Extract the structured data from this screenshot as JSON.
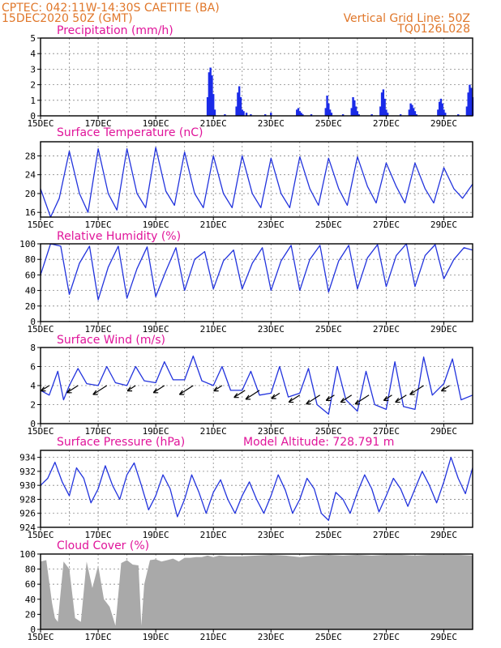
{
  "header": {
    "line1": "CPTEC:   042:11W-14:30S   CAETITE (BA)",
    "line2": "15DEC2020 50Z (GMT)",
    "right1": "Vertical Grid Line: 50Z",
    "right2": "TQ0126L028"
  },
  "colors": {
    "header": "#e0772a",
    "title": "#e0149a",
    "line": "#2233dd",
    "bar": "#1a2be8",
    "cloud": "#a9a9a9",
    "grid": "#888888"
  },
  "chart_data": [
    {
      "type": "bar",
      "title": "Precipitation (mm/h)",
      "ylim": [
        0,
        5
      ],
      "yticks": [
        0,
        1,
        2,
        3,
        4,
        5
      ],
      "xticks": [
        "15DEC",
        "17DEC",
        "19DEC",
        "21DEC",
        "23DEC",
        "25DEC",
        "27DEC",
        "29DEC"
      ],
      "xlim": [
        0,
        15
      ],
      "grid": "dotted",
      "series": [
        {
          "x": [
            5.8,
            5.85,
            5.9,
            5.95,
            6.0,
            6.05,
            6.4,
            6.8,
            6.85,
            6.9,
            6.95,
            7.0,
            7.05,
            7.15,
            7.3,
            7.8,
            8.0,
            8.9,
            8.95,
            9.0,
            9.05,
            9.1,
            9.4,
            9.9,
            9.95,
            10.0,
            10.05,
            10.1,
            10.5,
            10.8,
            10.85,
            10.9,
            10.95,
            11.0,
            11.05,
            11.5,
            11.8,
            11.85,
            11.9,
            11.95,
            12.0,
            12.05,
            12.5,
            12.8,
            12.85,
            12.9,
            12.95,
            13.0,
            13.05,
            13.8,
            13.85,
            13.9,
            13.95,
            14.0,
            14.05,
            14.5,
            14.8,
            14.85,
            14.9,
            14.95,
            15.0
          ],
          "values": [
            1.2,
            2.8,
            3.1,
            2.6,
            1.4,
            0.4,
            0.1,
            0.6,
            1.5,
            1.9,
            1.2,
            0.4,
            0.3,
            0.2,
            0.1,
            0.1,
            0.2,
            0.4,
            0.5,
            0.3,
            0.2,
            0.1,
            0.1,
            0.5,
            1.3,
            0.8,
            0.4,
            0.2,
            0.1,
            0.5,
            1.2,
            1.0,
            0.6,
            0.3,
            0.1,
            0.1,
            0.6,
            1.5,
            1.7,
            1.1,
            0.4,
            0.2,
            0.1,
            0.4,
            0.8,
            0.7,
            0.5,
            0.3,
            0.1,
            0.4,
            0.9,
            1.1,
            0.8,
            0.4,
            0.2,
            0.1,
            0.6,
            1.5,
            2.0,
            1.8,
            1.2
          ]
        }
      ]
    },
    {
      "type": "line",
      "title": "Surface Temperature (nC)",
      "ylim": [
        15,
        31
      ],
      "yticks": [
        16,
        20,
        24,
        28
      ],
      "xticks": [
        "15DEC",
        "17DEC",
        "19DEC",
        "21DEC",
        "23DEC",
        "25DEC",
        "27DEC",
        "29DEC"
      ],
      "xlim": [
        0,
        15
      ],
      "grid": "dotted",
      "series": [
        {
          "x": [
            0,
            0.35,
            0.65,
            1.0,
            1.35,
            1.65,
            2.0,
            2.35,
            2.65,
            3.0,
            3.35,
            3.65,
            4.0,
            4.35,
            4.65,
            5.0,
            5.35,
            5.65,
            6.0,
            6.35,
            6.65,
            7.0,
            7.35,
            7.65,
            8.0,
            8.35,
            8.65,
            9.0,
            9.35,
            9.65,
            10.0,
            10.35,
            10.65,
            11.0,
            11.35,
            11.65,
            12.0,
            12.35,
            12.65,
            13.0,
            13.35,
            13.65,
            14.0,
            14.35,
            14.65,
            15.0
          ],
          "values": [
            21.0,
            15.0,
            19.0,
            29.0,
            20.0,
            16.0,
            29.5,
            20.0,
            16.5,
            29.5,
            20.0,
            17.0,
            29.8,
            20.5,
            17.5,
            28.8,
            20.0,
            17.0,
            28.0,
            20.0,
            17.0,
            28.0,
            20.0,
            17.0,
            27.5,
            20.0,
            17.0,
            27.8,
            21.0,
            17.5,
            27.5,
            21.0,
            17.5,
            27.8,
            21.5,
            18.0,
            26.5,
            21.5,
            18.0,
            26.5,
            21.0,
            18.0,
            25.5,
            21.0,
            19.0,
            22.0
          ]
        }
      ]
    },
    {
      "type": "line",
      "title": "Relative Humidity (%)",
      "ylim": [
        0,
        100
      ],
      "yticks": [
        0,
        20,
        40,
        60,
        80,
        100
      ],
      "xticks": [
        "15DEC",
        "17DEC",
        "19DEC",
        "21DEC",
        "23DEC",
        "25DEC",
        "27DEC",
        "29DEC"
      ],
      "xlim": [
        0,
        15
      ],
      "grid": "dotted",
      "series": [
        {
          "x": [
            0,
            0.35,
            0.7,
            1.0,
            1.35,
            1.7,
            2.0,
            2.35,
            2.7,
            3.0,
            3.35,
            3.7,
            4.0,
            4.35,
            4.7,
            5.0,
            5.35,
            5.7,
            6.0,
            6.35,
            6.7,
            7.0,
            7.35,
            7.7,
            8.0,
            8.35,
            8.7,
            9.0,
            9.35,
            9.7,
            10.0,
            10.35,
            10.7,
            11.0,
            11.35,
            11.7,
            12.0,
            12.35,
            12.7,
            13.0,
            13.35,
            13.7,
            14.0,
            14.35,
            14.7,
            15.0
          ],
          "values": [
            60,
            100,
            97,
            35,
            75,
            97,
            28,
            70,
            97,
            30,
            68,
            96,
            32,
            65,
            95,
            40,
            80,
            90,
            42,
            78,
            92,
            42,
            75,
            95,
            40,
            78,
            98,
            40,
            80,
            98,
            38,
            78,
            98,
            42,
            82,
            99,
            45,
            85,
            100,
            45,
            85,
            99,
            55,
            80,
            95,
            92
          ]
        }
      ]
    },
    {
      "type": "line",
      "title": "Surface Wind (m/s)",
      "ylim": [
        0,
        8
      ],
      "yticks": [
        0,
        2,
        4,
        6,
        8
      ],
      "xticks": [
        "15DEC",
        "17DEC",
        "19DEC",
        "21DEC",
        "23DEC",
        "25DEC",
        "27DEC",
        "29DEC"
      ],
      "xlim": [
        0,
        15
      ],
      "grid": "dotted",
      "series": [
        {
          "x": [
            0,
            0.3,
            0.6,
            0.8,
            1.0,
            1.3,
            1.6,
            2.0,
            2.3,
            2.6,
            3.0,
            3.3,
            3.6,
            4.0,
            4.3,
            4.6,
            5.0,
            5.3,
            5.6,
            6.0,
            6.3,
            6.6,
            7.0,
            7.3,
            7.6,
            8.0,
            8.3,
            8.6,
            9.0,
            9.3,
            9.6,
            10.0,
            10.3,
            10.6,
            11.0,
            11.3,
            11.6,
            12.0,
            12.3,
            12.6,
            13.0,
            13.3,
            13.6,
            14.0,
            14.3,
            14.6,
            15.0
          ],
          "values": [
            3.5,
            3.0,
            5.5,
            2.5,
            4.0,
            5.8,
            4.2,
            4.0,
            6.0,
            4.3,
            4.0,
            6.0,
            4.5,
            4.3,
            6.5,
            4.6,
            4.6,
            7.1,
            4.5,
            4.0,
            6.0,
            3.5,
            3.5,
            5.5,
            3.0,
            3.2,
            6.0,
            2.8,
            3.2,
            5.8,
            2.0,
            1.0,
            6.0,
            2.5,
            1.3,
            5.5,
            2.0,
            1.5,
            6.5,
            1.8,
            1.5,
            7.0,
            3.0,
            4.2,
            6.8,
            2.5,
            3.0
          ]
        }
      ],
      "barbs": [
        {
          "x": 0.3,
          "speed": 4.0
        },
        {
          "x": 1.3,
          "speed": 4.0
        },
        {
          "x": 2.3,
          "speed": 4.0
        },
        {
          "x": 3.3,
          "speed": 4.0
        },
        {
          "x": 4.3,
          "speed": 4.0
        },
        {
          "x": 5.3,
          "speed": 4.0
        },
        {
          "x": 6.3,
          "speed": 4.0
        },
        {
          "x": 7.1,
          "speed": 3.5
        },
        {
          "x": 7.6,
          "speed": 3.5
        },
        {
          "x": 8.3,
          "speed": 3.2
        },
        {
          "x": 9.0,
          "speed": 3.0
        },
        {
          "x": 9.7,
          "speed": 3.0
        },
        {
          "x": 10.2,
          "speed": 3.0
        },
        {
          "x": 10.8,
          "speed": 3.0
        },
        {
          "x": 11.4,
          "speed": 3.0
        },
        {
          "x": 12.2,
          "speed": 3.0
        },
        {
          "x": 12.7,
          "speed": 3.0
        },
        {
          "x": 13.3,
          "speed": 4.0
        },
        {
          "x": 14.2,
          "speed": 4.0
        }
      ]
    },
    {
      "type": "line",
      "title": "Surface Pressure (hPa)",
      "annotation": "Model Altitude: 728.791  m",
      "ylim": [
        924,
        935
      ],
      "yticks": [
        924,
        926,
        928,
        930,
        932,
        934
      ],
      "xticks": [
        "15DEC",
        "17DEC",
        "19DEC",
        "21DEC",
        "23DEC",
        "25DEC",
        "27DEC",
        "29DEC"
      ],
      "xlim": [
        0,
        15
      ],
      "grid": "dotted",
      "series": [
        {
          "x": [
            0,
            0.25,
            0.5,
            0.75,
            1.0,
            1.25,
            1.5,
            1.75,
            2.0,
            2.25,
            2.5,
            2.75,
            3.0,
            3.25,
            3.5,
            3.75,
            4.0,
            4.25,
            4.5,
            4.75,
            5.0,
            5.25,
            5.5,
            5.75,
            6.0,
            6.25,
            6.5,
            6.75,
            7.0,
            7.25,
            7.5,
            7.75,
            8.0,
            8.25,
            8.5,
            8.75,
            9.0,
            9.25,
            9.5,
            9.75,
            10.0,
            10.25,
            10.5,
            10.75,
            11.0,
            11.25,
            11.5,
            11.75,
            12.0,
            12.25,
            12.5,
            12.75,
            13.0,
            13.25,
            13.5,
            13.75,
            14.0,
            14.25,
            14.5,
            14.75,
            15.0
          ],
          "values": [
            930,
            931,
            933.3,
            930.5,
            928.5,
            932.5,
            931,
            927.5,
            929.5,
            932.8,
            930,
            928,
            931.5,
            933.2,
            930,
            926.5,
            928.5,
            931.5,
            929.5,
            925.5,
            928,
            931.5,
            929,
            926,
            929,
            930.8,
            928,
            926,
            928.5,
            930.5,
            928,
            926,
            928.5,
            931.5,
            929.3,
            926,
            928,
            931,
            929.5,
            926,
            925,
            929,
            928,
            926,
            929,
            931.5,
            929.5,
            926.2,
            928.5,
            931,
            929.5,
            927,
            929.5,
            932,
            930,
            927.5,
            930.5,
            934,
            931,
            928.8,
            932.5
          ]
        }
      ]
    },
    {
      "type": "area",
      "title": "Cloud Cover (%)",
      "ylim": [
        0,
        100
      ],
      "yticks": [
        0,
        20,
        40,
        60,
        80,
        100
      ],
      "xticks": [
        "15DEC",
        "17DEC",
        "19DEC",
        "21DEC",
        "23DEC",
        "25DEC",
        "27DEC",
        "29DEC"
      ],
      "xlim": [
        0,
        15
      ],
      "grid": "dotted",
      "series": [
        {
          "x": [
            0,
            0.2,
            0.4,
            0.5,
            0.6,
            0.8,
            1.0,
            1.2,
            1.4,
            1.6,
            1.8,
            2.0,
            2.2,
            2.4,
            2.6,
            2.8,
            3.0,
            3.2,
            3.4,
            3.5,
            3.6,
            3.8,
            4.0,
            4.2,
            4.4,
            4.6,
            4.8,
            5.0,
            5.2,
            5.4,
            5.6,
            5.8,
            6.0,
            6.2,
            6.5,
            7.0,
            7.5,
            8.0,
            8.5,
            9.0,
            9.5,
            10.0,
            10.5,
            11.0,
            11.5,
            12.0,
            12.5,
            13.0,
            13.5,
            14.0,
            14.5,
            15.0
          ],
          "values": [
            90,
            92,
            35,
            15,
            10,
            90,
            80,
            15,
            10,
            90,
            55,
            85,
            40,
            30,
            5,
            88,
            92,
            86,
            85,
            5,
            60,
            92,
            93,
            90,
            92,
            94,
            90,
            95,
            95,
            96,
            96,
            98,
            96,
            98,
            97,
            97,
            98,
            99,
            98,
            96,
            98,
            99,
            98,
            99,
            98,
            99,
            99,
            98,
            99,
            99,
            99,
            98
          ]
        }
      ]
    }
  ]
}
